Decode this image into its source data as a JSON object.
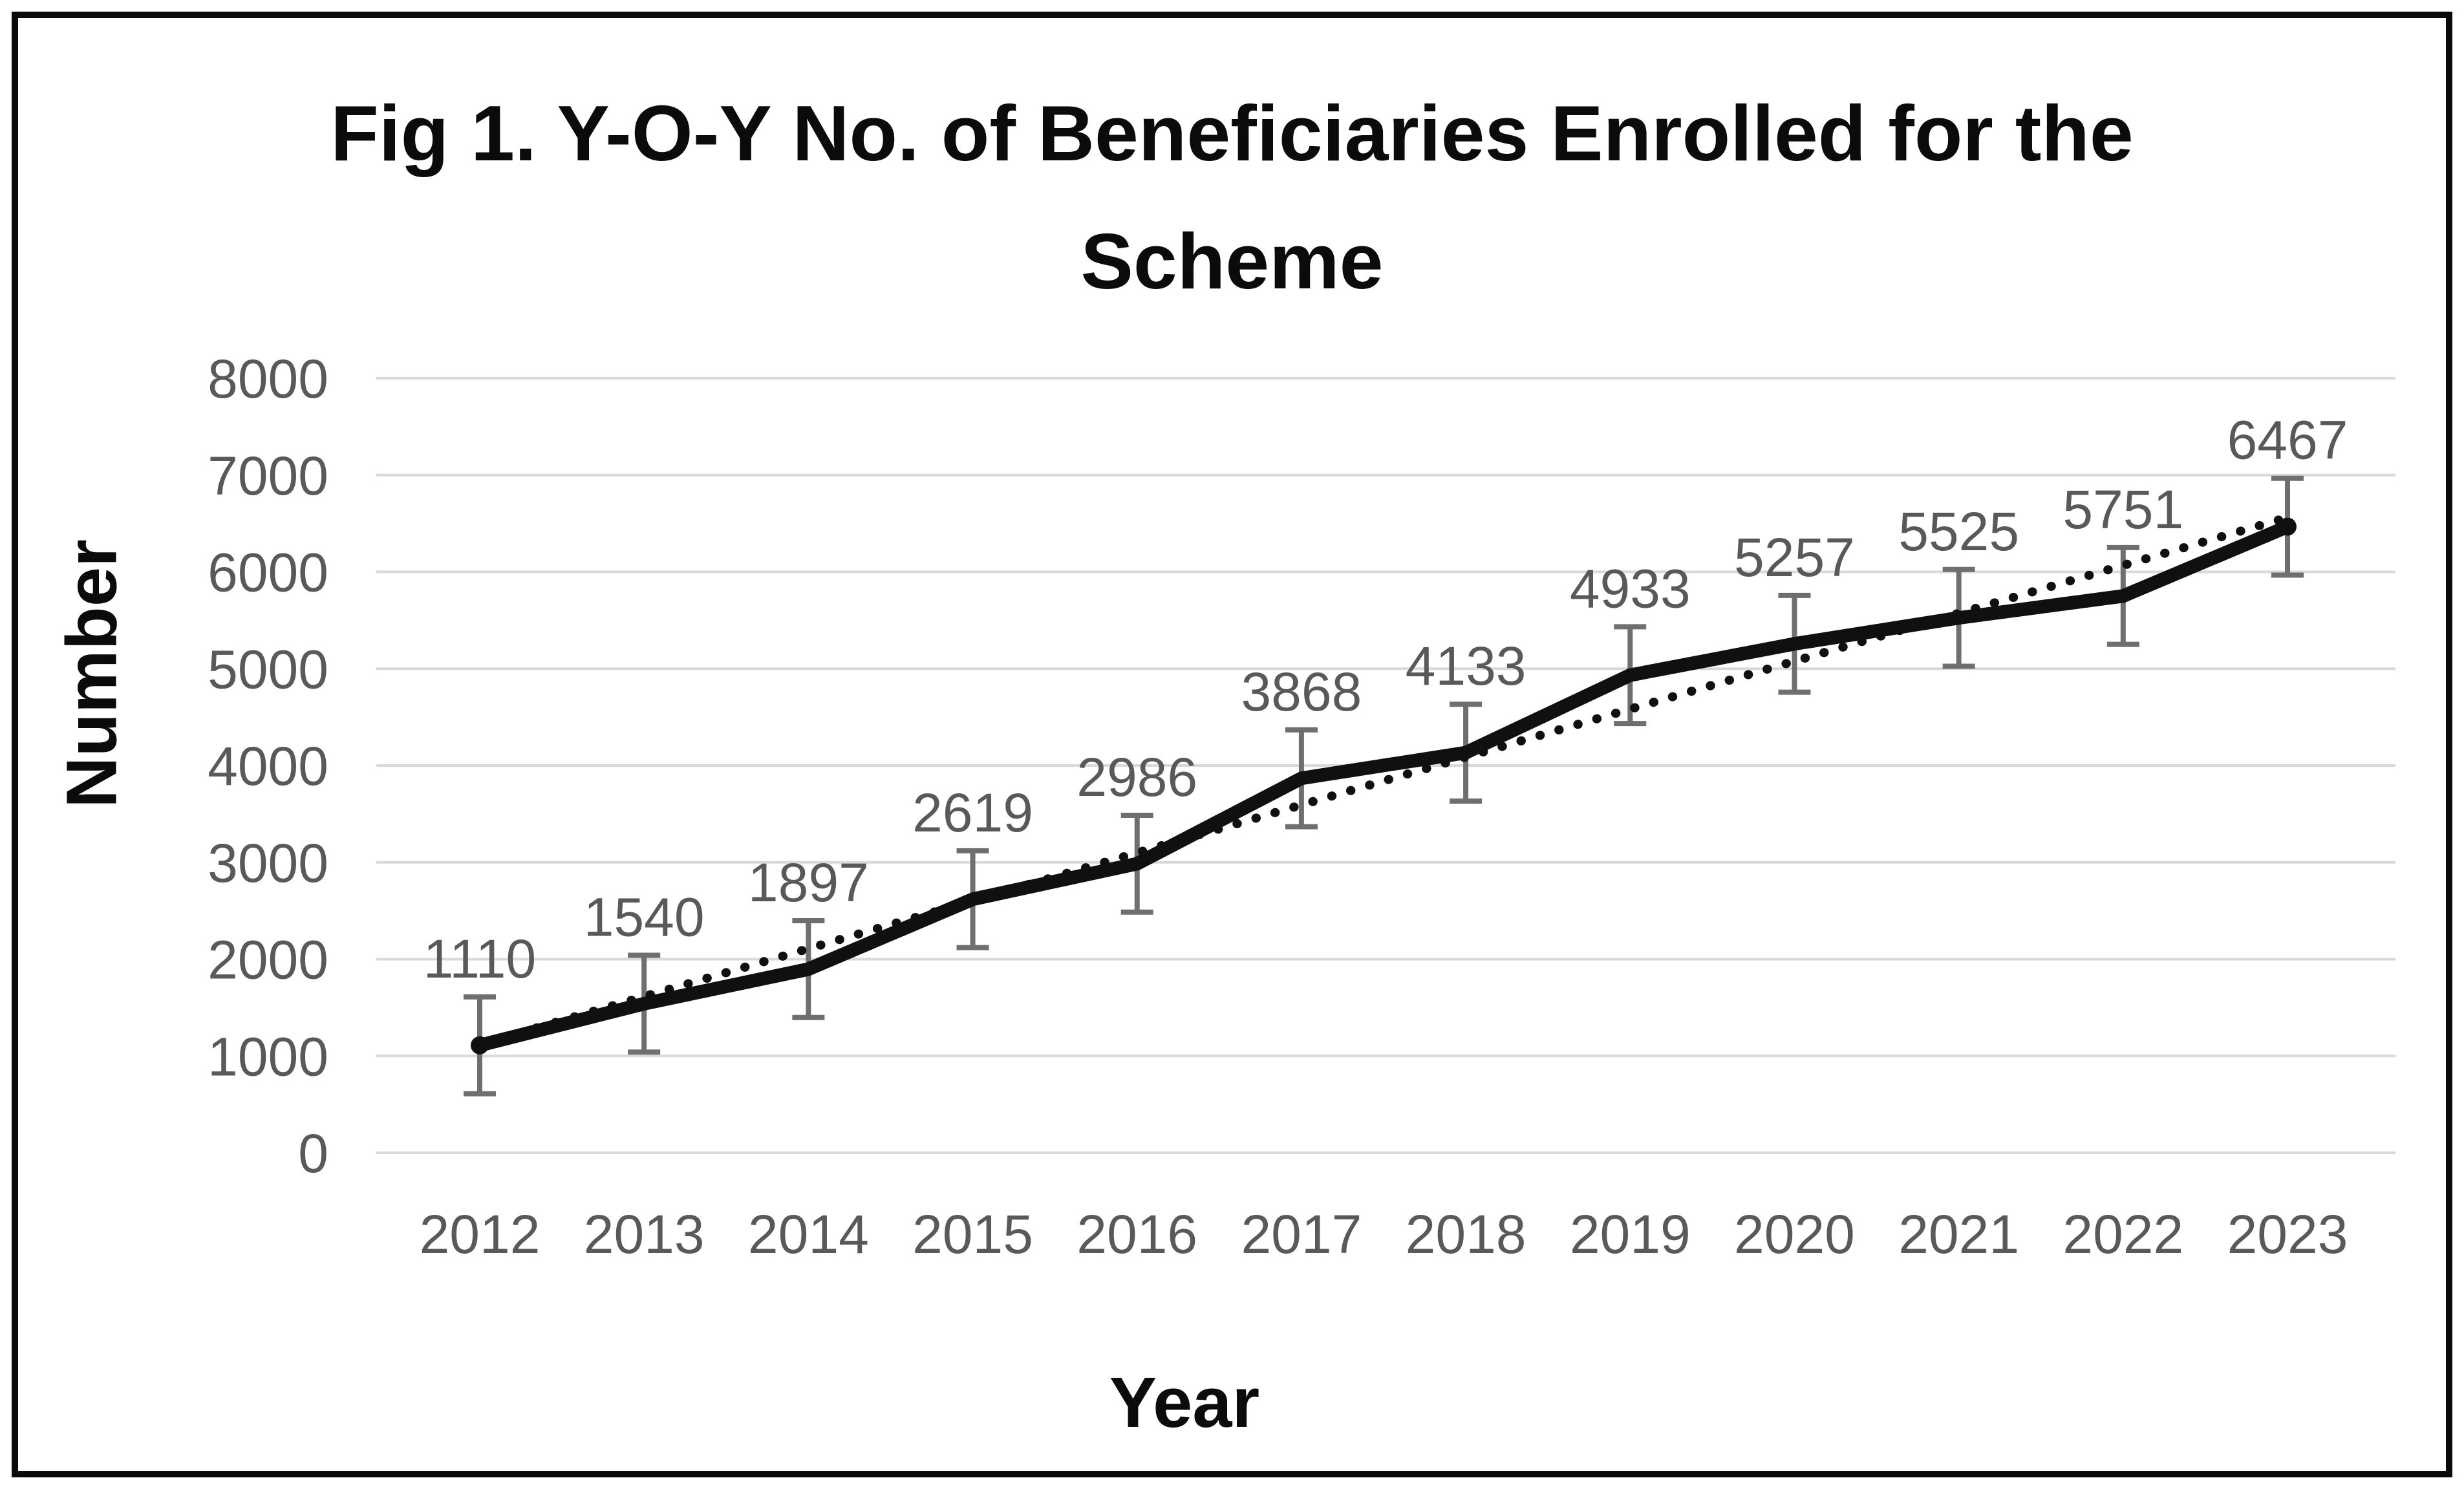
{
  "figure": {
    "title_line1": "Fig 1. Y-O-Y No. of Beneficiaries Enrolled for the",
    "title_line2": "Scheme"
  },
  "chart_data": {
    "type": "line",
    "title": "Fig 1. Y-O-Y No. of Beneficiaries Enrolled for the Scheme",
    "xlabel": "Year",
    "ylabel": "Number",
    "categories": [
      "2012",
      "2013",
      "2014",
      "2015",
      "2016",
      "2017",
      "2018",
      "2019",
      "2020",
      "2021",
      "2022",
      "2023"
    ],
    "series": [
      {
        "name": "Beneficiaries enrolled",
        "style": "solid-thick",
        "values": [
          1110,
          1540,
          1897,
          2619,
          2986,
          3868,
          4133,
          4933,
          5257,
          5525,
          5751,
          6467
        ],
        "data_labels": [
          1110,
          1540,
          1897,
          2619,
          2986,
          3868,
          4133,
          4933,
          5257,
          5525,
          5751,
          6467
        ],
        "error_bar_plus": 500,
        "error_bar_minus": 500,
        "end_point_markers": true
      },
      {
        "name": "Linear trendline",
        "style": "dotted",
        "trend_start_value": 1119,
        "trend_end_value": 6562
      }
    ],
    "ylim": [
      0,
      8000
    ],
    "ytick_step": 1000,
    "yticks": [
      0,
      1000,
      2000,
      3000,
      4000,
      5000,
      6000,
      7000,
      8000
    ],
    "grid": "horizontal",
    "legend_position": "none",
    "colors": {
      "series_line": "#101010",
      "trend_line": "#101010",
      "error_bar": "#6f6f6f",
      "grid_line": "#d9d9d9",
      "tick_label": "#595959",
      "data_label": "#595959",
      "title_text": "#0b0b0b",
      "background": "#ffffff",
      "frame_border": "#0a0a0a"
    }
  }
}
